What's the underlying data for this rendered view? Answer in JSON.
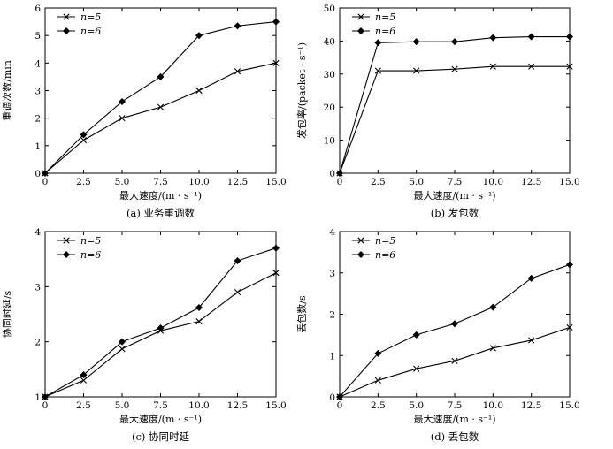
{
  "chart_data": [
    {
      "type": "line",
      "panel": "a",
      "caption": "(a) 业务重调数",
      "xlabel": "最大速度/(m · s⁻¹)",
      "ylabel": "重调次数/min",
      "x": [
        0,
        2.5,
        5.0,
        7.5,
        10.0,
        12.5,
        15.0
      ],
      "xticks": [
        "0",
        "2.5",
        "5.0",
        "7.5",
        "10.0",
        "12.5",
        "15.0"
      ],
      "xlim": [
        0,
        15
      ],
      "ylim": [
        0,
        6
      ],
      "yticks": [
        "0",
        "1",
        "2",
        "3",
        "4",
        "5",
        "6"
      ],
      "legend": "top-left",
      "series": [
        {
          "name": "n=5",
          "marker": "x",
          "values": [
            0,
            1.2,
            2.0,
            2.4,
            3.0,
            3.7,
            4.0
          ]
        },
        {
          "name": "n=6",
          "marker": "diamond",
          "values": [
            0,
            1.4,
            2.6,
            3.5,
            5.0,
            5.35,
            5.5
          ]
        }
      ]
    },
    {
      "type": "line",
      "panel": "b",
      "caption": "(b) 发包数",
      "xlabel": "最大速度/(m · s⁻¹)",
      "ylabel": "发包率/(packet · s⁻¹)",
      "x": [
        0,
        2.5,
        5.0,
        7.5,
        10.0,
        12.5,
        15.0
      ],
      "xticks": [
        "0",
        "2.5",
        "5.0",
        "7.5",
        "10.0",
        "12.5",
        "15.0"
      ],
      "xlim": [
        0,
        15
      ],
      "ylim": [
        0,
        50
      ],
      "yticks": [
        "0",
        "10",
        "20",
        "30",
        "40",
        "50"
      ],
      "legend": "top-left",
      "series": [
        {
          "name": "n=5",
          "marker": "x",
          "values": [
            0,
            31,
            31,
            31.5,
            32.3,
            32.3,
            32.3
          ]
        },
        {
          "name": "n=6",
          "marker": "diamond",
          "values": [
            0,
            39.5,
            39.8,
            39.8,
            41,
            41.3,
            41.3
          ]
        }
      ]
    },
    {
      "type": "line",
      "panel": "c",
      "caption": "(c) 协同时延",
      "xlabel": "最大速度/(m · s⁻¹)",
      "ylabel": "协同时延/s",
      "x": [
        0,
        2.5,
        5.0,
        7.5,
        10.0,
        12.5,
        15.0
      ],
      "xticks": [
        "0",
        "2.5",
        "5.0",
        "7.5",
        "10.0",
        "12.5",
        "15.0"
      ],
      "xlim": [
        0,
        15
      ],
      "ylim": [
        1,
        4
      ],
      "yticks": [
        "1",
        "2",
        "3",
        "4"
      ],
      "legend": "top-left",
      "series": [
        {
          "name": "n=5",
          "marker": "x",
          "values": [
            1.0,
            1.3,
            1.87,
            2.2,
            2.37,
            2.9,
            3.25
          ]
        },
        {
          "name": "n=6",
          "marker": "diamond",
          "values": [
            1.0,
            1.4,
            2.0,
            2.25,
            2.62,
            3.47,
            3.7
          ]
        }
      ]
    },
    {
      "type": "line",
      "panel": "d",
      "caption": "(d) 丢包数",
      "xlabel": "最大速度/(m · s⁻¹)",
      "ylabel": "丢包数/s",
      "x": [
        0,
        2.5,
        5.0,
        7.5,
        10.0,
        12.5,
        15.0
      ],
      "xticks": [
        "0",
        "2.5",
        "5.0",
        "7.5",
        "10.0",
        "12.5",
        "15.0"
      ],
      "xlim": [
        0,
        15
      ],
      "ylim": [
        0,
        4
      ],
      "yticks": [
        "0",
        "1",
        "2",
        "3",
        "4"
      ],
      "legend": "top-left",
      "series": [
        {
          "name": "n=5",
          "marker": "x",
          "values": [
            0,
            0.4,
            0.68,
            0.87,
            1.18,
            1.37,
            1.68
          ]
        },
        {
          "name": "n=6",
          "marker": "diamond",
          "values": [
            0,
            1.05,
            1.5,
            1.77,
            2.17,
            2.87,
            3.2
          ]
        }
      ]
    }
  ]
}
